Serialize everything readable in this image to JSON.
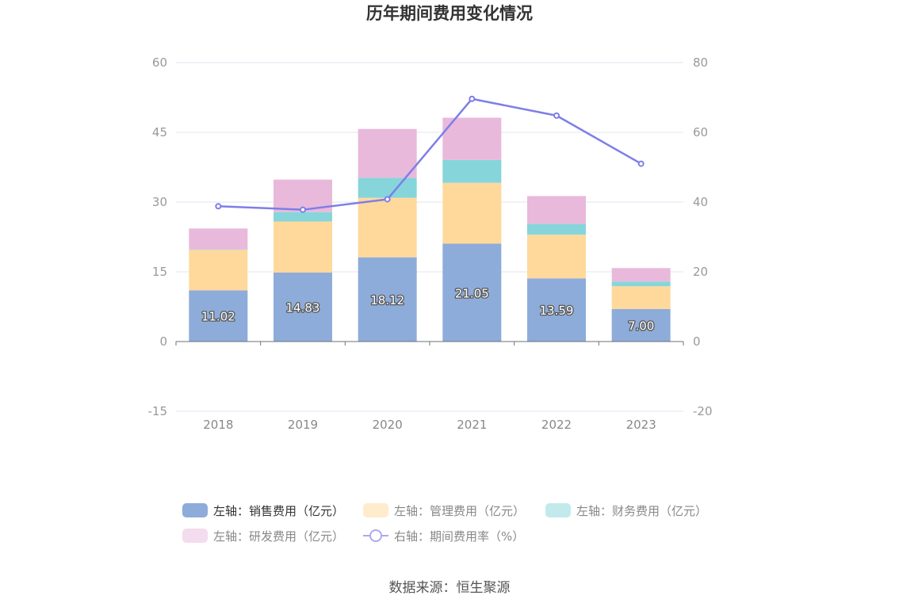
{
  "chart_data": {
    "type": "bar",
    "title": "历年期间费用变化情况",
    "categories": [
      "2018",
      "2019",
      "2020",
      "2021",
      "2022",
      "2023"
    ],
    "stacked": true,
    "y_left": {
      "min": -15,
      "max": 60,
      "ticks": [
        "60",
        "45",
        "30",
        "15",
        "0",
        "-15"
      ]
    },
    "y_right": {
      "min": -20,
      "max": 80,
      "ticks": [
        "80",
        "60",
        "40",
        "20",
        "0",
        "-20"
      ]
    },
    "grid": true,
    "legend_position": "bottom",
    "series": [
      {
        "name": "左轴：销售费用（亿元）",
        "axis": "left",
        "color": "#8eacd9",
        "values": [
          11.02,
          14.83,
          18.12,
          21.05,
          13.59,
          7.0
        ],
        "labels": [
          "11.02",
          "14.83",
          "18.12",
          "21.05",
          "13.59",
          "7.00"
        ]
      },
      {
        "name": "左轴：管理费用（亿元）",
        "axis": "left",
        "color": "#ffd99b",
        "values": [
          8.7,
          11.0,
          12.8,
          13.1,
          9.4,
          4.9
        ]
      },
      {
        "name": "左轴：财务费用（亿元）",
        "axis": "left",
        "color": "#86d5db",
        "values": [
          0.1,
          2.0,
          4.3,
          4.9,
          2.3,
          1.0
        ]
      },
      {
        "name": "左轴：研发费用（亿元）",
        "axis": "left",
        "color": "#e8b9db",
        "values": [
          4.5,
          7.0,
          10.5,
          9.1,
          6.0,
          2.9
        ]
      },
      {
        "name": "右轴：期间费用率（%）",
        "axis": "right",
        "type": "line",
        "color": "#7e7ee8",
        "values": [
          38.8,
          37.8,
          40.8,
          69.6,
          64.8,
          51.0
        ]
      }
    ]
  },
  "source": "数据来源：恒生聚源"
}
